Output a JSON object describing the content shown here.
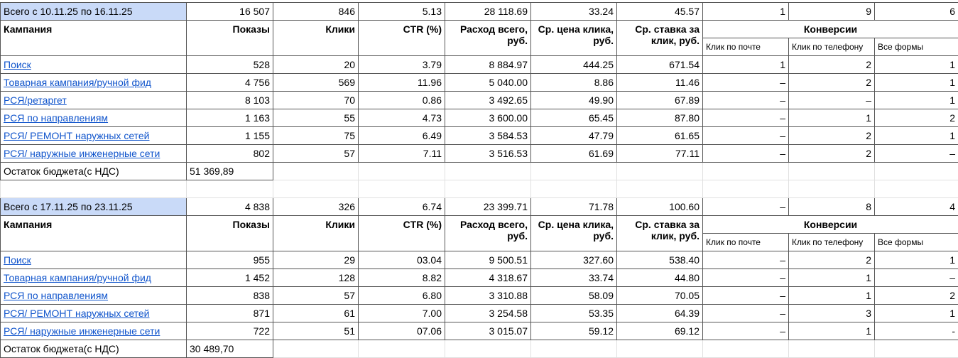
{
  "blocks": [
    {
      "total": {
        "label": "Всего с 10.11.25 по 16.11.25",
        "cells": [
          "16 507",
          "846",
          "5.13",
          "28 118.69",
          "33.24",
          "45.57",
          "1",
          "9",
          "6"
        ]
      },
      "header": {
        "columns": [
          "Кампания",
          "Показы",
          "Клики",
          "CTR (%)",
          "Расход всего, руб.",
          "Ср. цена клика, руб.",
          "Ср. ставка за клик, руб."
        ],
        "conversions": "Конверсии",
        "conversion_columns": [
          "Клик по почте",
          "Клик по телефону",
          "Все формы"
        ]
      },
      "rows": [
        {
          "campaign": "Поиск",
          "cells": [
            "528",
            "20",
            "3.79",
            "8 884.97",
            "444.25",
            "671.54",
            "1",
            "2",
            "1"
          ]
        },
        {
          "campaign": "Товарная кампания/ручной фид",
          "cells": [
            "4 756",
            "569",
            "11.96",
            "5 040.00",
            "8.86",
            "11.46",
            "–",
            "2",
            "1"
          ]
        },
        {
          "campaign": "РСЯ/ретаргет",
          "cells": [
            "8 103",
            "70",
            "0.86",
            "3 492.65",
            "49.90",
            "67.89",
            "–",
            "–",
            "1"
          ]
        },
        {
          "campaign": "РСЯ по направлениям",
          "cells": [
            "1 163",
            "55",
            "4.73",
            "3 600.00",
            "65.45",
            "87.80",
            "–",
            "1",
            "2"
          ]
        },
        {
          "campaign": "РСЯ/ РЕМОНТ наружных сетей",
          "cells": [
            "1 155",
            "75",
            "6.49",
            "3 584.53",
            "47.79",
            "61.65",
            "–",
            "2",
            "1"
          ]
        },
        {
          "campaign": "РСЯ/ наружные инженерные сети",
          "cells": [
            "802",
            "57",
            "7.11",
            "3 516.53",
            "61.69",
            "77.11",
            "–",
            "2",
            "–"
          ]
        }
      ],
      "budget": {
        "label": "Остаток бюджета(с НДС)",
        "value": "51 369,89"
      }
    },
    {
      "total": {
        "label": "Всего с 17.11.25 по 23.11.25",
        "cells": [
          "4 838",
          "326",
          "6.74",
          "23 399.71",
          "71.78",
          "100.60",
          "–",
          "8",
          "4"
        ]
      },
      "header": {
        "columns": [
          "Кампания",
          "Показы",
          "Клики",
          "CTR (%)",
          "Расход всего, руб.",
          "Ср. цена клика, руб.",
          "Ср. ставка за клик, руб."
        ],
        "conversions": "Конверсии",
        "conversion_columns": [
          "Клик по почте",
          "Клик по телефону",
          "Все формы"
        ]
      },
      "rows": [
        {
          "campaign": "Поиск",
          "cells": [
            "955",
            "29",
            "03.04",
            "9 500.51",
            "327.60",
            "538.40",
            "–",
            "2",
            "1"
          ]
        },
        {
          "campaign": "Товарная кампания/ручной фид",
          "cells": [
            "1 452",
            "128",
            "8.82",
            "4 318.67",
            "33.74",
            "44.80",
            "–",
            "1",
            "–"
          ]
        },
        {
          "campaign": "РСЯ по направлениям",
          "cells": [
            "838",
            "57",
            "6.80",
            "3 310.88",
            "58.09",
            "70.05",
            "–",
            "1",
            "2"
          ]
        },
        {
          "campaign": "РСЯ/ РЕМОНТ наружных сетей",
          "cells": [
            "871",
            "61",
            "7.00",
            "3 254.58",
            "53.35",
            "64.39",
            "–",
            "3",
            "1"
          ]
        },
        {
          "campaign": "РСЯ/ наружные инженерные сети",
          "cells": [
            "722",
            "51",
            "07.06",
            "3 015.07",
            "59.12",
            "69.12",
            "–",
            "1",
            "-"
          ]
        }
      ],
      "budget": {
        "label": "Остаток бюджета(с НДС)",
        "value": "30 489,70"
      }
    }
  ]
}
